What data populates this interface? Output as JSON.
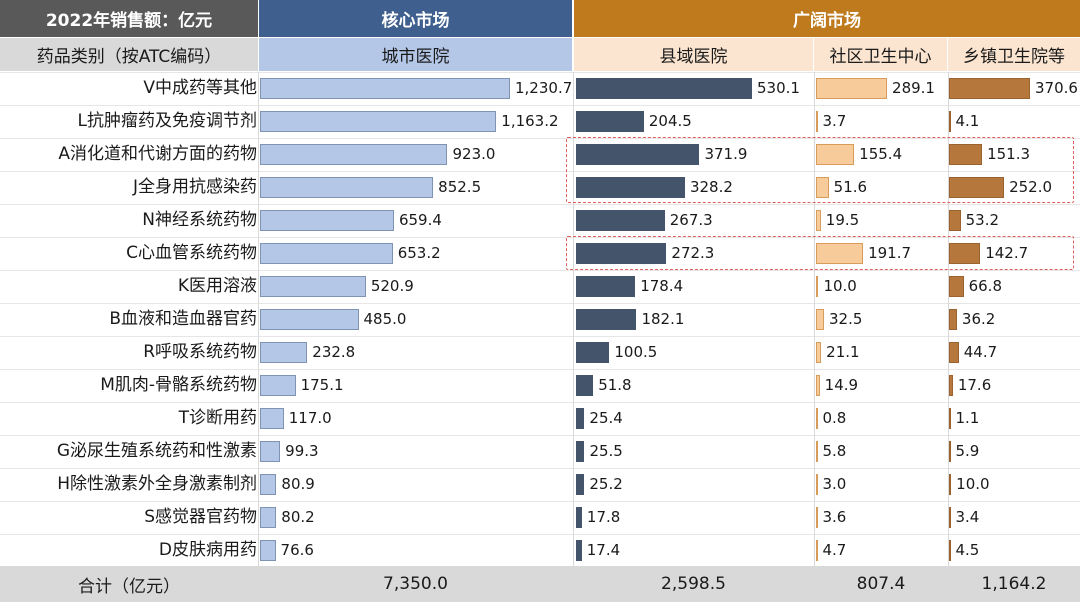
{
  "header": {
    "corner_title": "2022年销售额：亿元",
    "core_market": "核心市场",
    "broad_market": "广阔市场",
    "category_header": "药品类别（按ATC编码）",
    "col_city": "城市医院",
    "col_county": "县域医院",
    "col_community": "社区卫生中心",
    "col_township": "乡镇卫生院等"
  },
  "colors": {
    "core_header": "#3f5f8f",
    "broad_header": "#c07a1e",
    "corner_header": "#595959",
    "city_bar": "#b4c7e7",
    "county_bar": "#44546a",
    "community_bar": "#f8cb9a",
    "township_bar": "#b5773c",
    "highlight": "#e06060"
  },
  "chart_data": {
    "type": "bar",
    "title": "2022年销售额：亿元",
    "categories": [
      "V中成药等其他",
      "L抗肿瘤药及免疫调节剂",
      "A消化道和代谢方面的药物",
      "J全身用抗感染药",
      "N神经系统药物",
      "C心血管系统药物",
      "K医用溶液",
      "B血液和造血器官药",
      "R呼吸系统药物",
      "M肌肉-骨骼系统药物",
      "T诊断用药",
      "G泌尿生殖系统药和性激素",
      "H除性激素外全身激素制剂",
      "S感觉器官药物",
      "D皮肤病用药"
    ],
    "series": [
      {
        "name": "城市医院",
        "values": [
          1230.7,
          1163.2,
          923.0,
          852.5,
          659.4,
          653.2,
          520.9,
          485.0,
          232.8,
          175.1,
          117.0,
          99.3,
          80.9,
          80.2,
          76.6
        ],
        "labels": [
          "1,230.7",
          "1,163.2",
          "923.0",
          "852.5",
          "659.4",
          "653.2",
          "520.9",
          "485.0",
          "232.8",
          "175.1",
          "117.0",
          "99.3",
          "80.9",
          "80.2",
          "76.6"
        ],
        "total": "7,350.0"
      },
      {
        "name": "县域医院",
        "values": [
          530.1,
          204.5,
          371.9,
          328.2,
          267.3,
          272.3,
          178.4,
          182.1,
          100.5,
          51.8,
          25.4,
          25.5,
          25.2,
          17.8,
          17.4
        ],
        "labels": [
          "530.1",
          "204.5",
          "371.9",
          "328.2",
          "267.3",
          "272.3",
          "178.4",
          "182.1",
          "100.5",
          "51.8",
          "25.4",
          "25.5",
          "25.2",
          "17.8",
          "17.4"
        ],
        "total": "2,598.5"
      },
      {
        "name": "社区卫生中心",
        "values": [
          289.1,
          3.7,
          155.4,
          51.6,
          19.5,
          191.7,
          10.0,
          32.5,
          21.1,
          14.9,
          0.8,
          5.8,
          3.0,
          3.6,
          4.7
        ],
        "labels": [
          "289.1",
          "3.7",
          "155.4",
          "51.6",
          "19.5",
          "191.7",
          "10.0",
          "32.5",
          "21.1",
          "14.9",
          "0.8",
          "5.8",
          "3.0",
          "3.6",
          "4.7"
        ],
        "total": "807.4"
      },
      {
        "name": "乡镇卫生院等",
        "values": [
          370.6,
          4.1,
          151.3,
          252.0,
          53.2,
          142.7,
          66.8,
          36.2,
          44.7,
          17.6,
          1.1,
          5.9,
          10.0,
          3.4,
          4.5
        ],
        "labels": [
          "370.6",
          "4.1",
          "151.3",
          "252.0",
          "53.2",
          "142.7",
          "66.8",
          "36.2",
          "44.7",
          "17.6",
          "1.1",
          "5.9",
          "10.0",
          "3.4",
          "4.5"
        ],
        "total": "1,164.2"
      }
    ],
    "total_label": "合计（亿元）",
    "highlighted_rows": [
      [
        2,
        3
      ],
      [
        5,
        5
      ]
    ]
  }
}
